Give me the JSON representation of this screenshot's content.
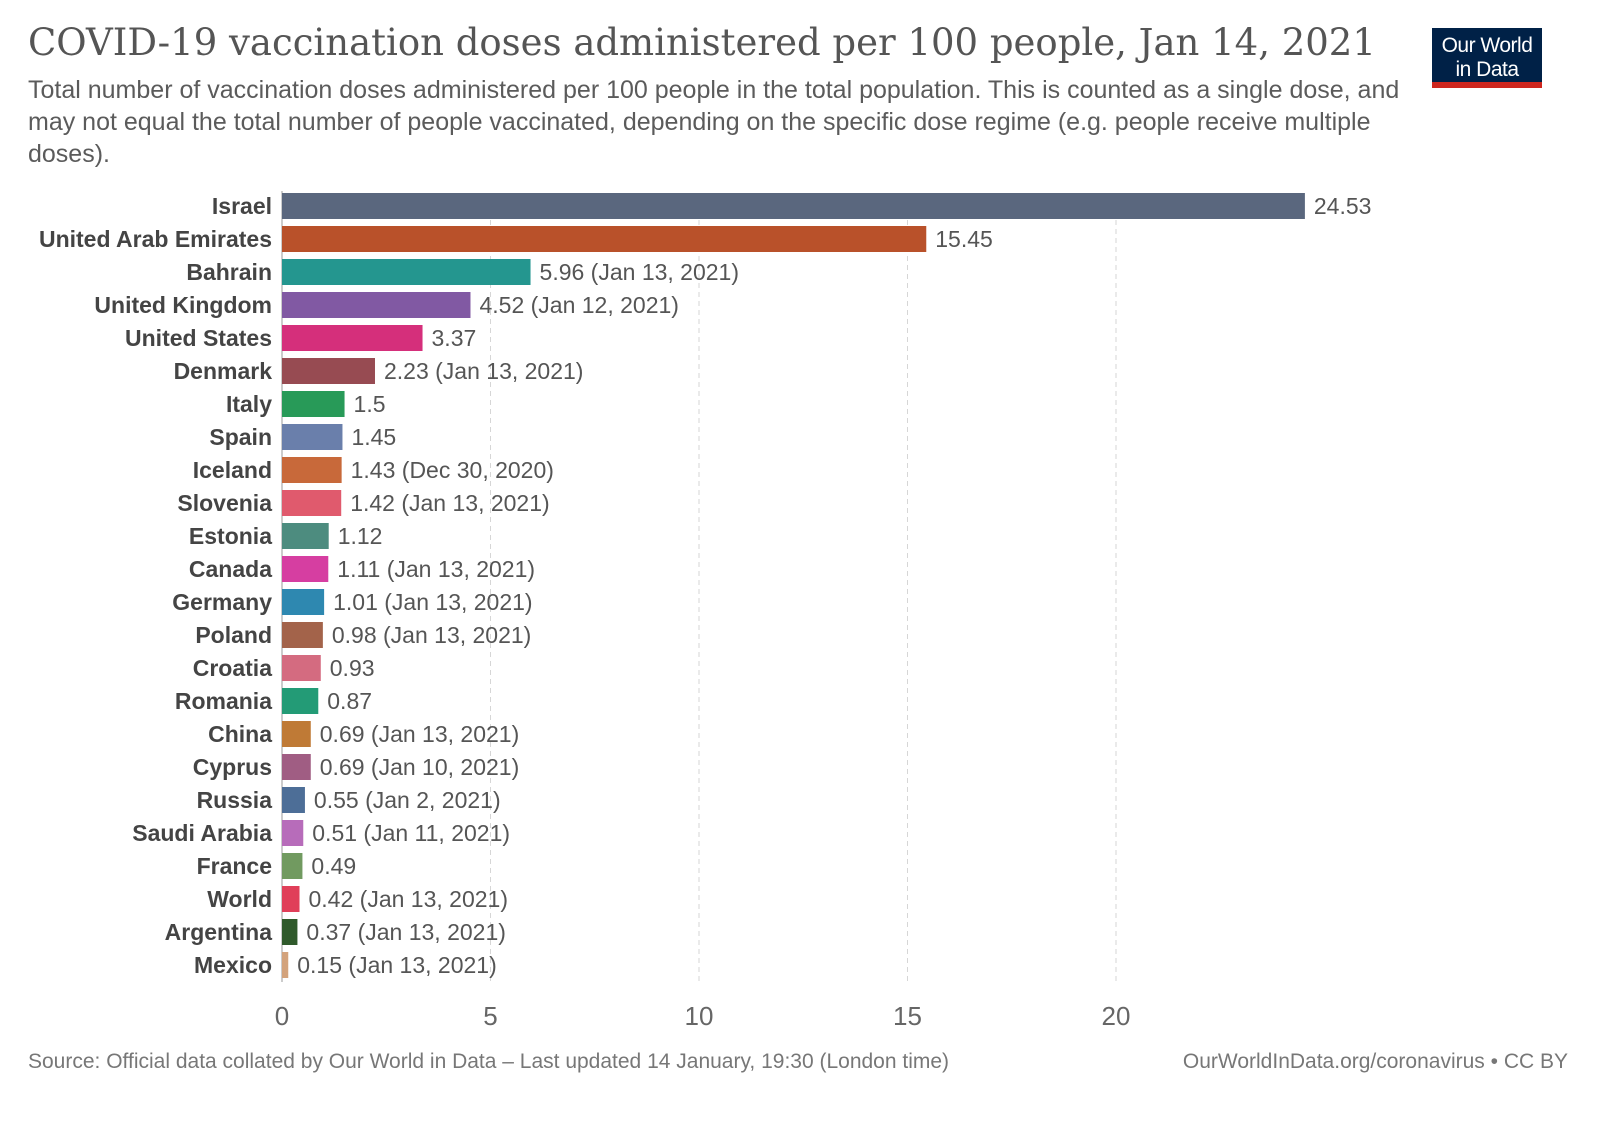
{
  "header": {
    "title": "COVID-19 vaccination doses administered per 100 people, Jan 14, 2021",
    "subtitle": "Total number of vaccination doses administered per 100 people in the total population. This is counted as a single dose, and may not equal the total number of people vaccinated, depending on the specific dose regime (e.g. people receive multiple doses).",
    "logo_line1": "Our World",
    "logo_line2": "in Data"
  },
  "footer": {
    "source": "Source: Official data collated by Our World in Data – Last updated 14 January, 19:30 (London time)",
    "url": "OurWorldInData.org/coronavirus • CC BY"
  },
  "chart_data": {
    "type": "bar",
    "orientation": "horizontal",
    "title": "COVID-19 vaccination doses administered per 100 people, Jan 14, 2021",
    "xlabel": "",
    "ylabel": "",
    "xlim": [
      0,
      24.53
    ],
    "xticks": [
      0,
      5,
      10,
      15,
      20
    ],
    "grid": "vertical dashed",
    "categories": [
      "Israel",
      "United Arab Emirates",
      "Bahrain",
      "United Kingdom",
      "United States",
      "Denmark",
      "Italy",
      "Spain",
      "Iceland",
      "Slovenia",
      "Estonia",
      "Canada",
      "Germany",
      "Poland",
      "Croatia",
      "Romania",
      "China",
      "Cyprus",
      "Russia",
      "Saudi Arabia",
      "France",
      "World",
      "Argentina",
      "Mexico"
    ],
    "values": [
      24.53,
      15.45,
      5.96,
      4.52,
      3.37,
      2.23,
      1.5,
      1.45,
      1.43,
      1.42,
      1.12,
      1.11,
      1.01,
      0.98,
      0.93,
      0.87,
      0.69,
      0.69,
      0.55,
      0.51,
      0.49,
      0.42,
      0.37,
      0.15
    ],
    "value_labels": [
      "24.53",
      "15.45",
      "5.96 (Jan 13, 2021)",
      "4.52 (Jan 12, 2021)",
      "3.37",
      "2.23 (Jan 13, 2021)",
      "1.5",
      "1.45",
      "1.43 (Dec 30, 2020)",
      "1.42 (Jan 13, 2021)",
      "1.12",
      "1.11 (Jan 13, 2021)",
      "1.01 (Jan 13, 2021)",
      "0.98 (Jan 13, 2021)",
      "0.93",
      "0.87",
      "0.69 (Jan 13, 2021)",
      "0.69 (Jan 10, 2021)",
      "0.55 (Jan 2, 2021)",
      "0.51 (Jan 11, 2021)",
      "0.49",
      "0.42 (Jan 13, 2021)",
      "0.37 (Jan 13, 2021)",
      "0.15 (Jan 13, 2021)"
    ],
    "colors": [
      "#5a677e",
      "#b9512a",
      "#24968f",
      "#8159a3",
      "#d52f7b",
      "#974b52",
      "#289a58",
      "#6a7fab",
      "#c8693a",
      "#e05a6d",
      "#4d8c7f",
      "#d63ea1",
      "#2e88b0",
      "#a3634a",
      "#d46b80",
      "#239b76",
      "#bf7a36",
      "#a05d83",
      "#4d6e97",
      "#b76cba",
      "#719a60",
      "#e03f59",
      "#2f5a2b",
      "#d3a37c"
    ]
  }
}
